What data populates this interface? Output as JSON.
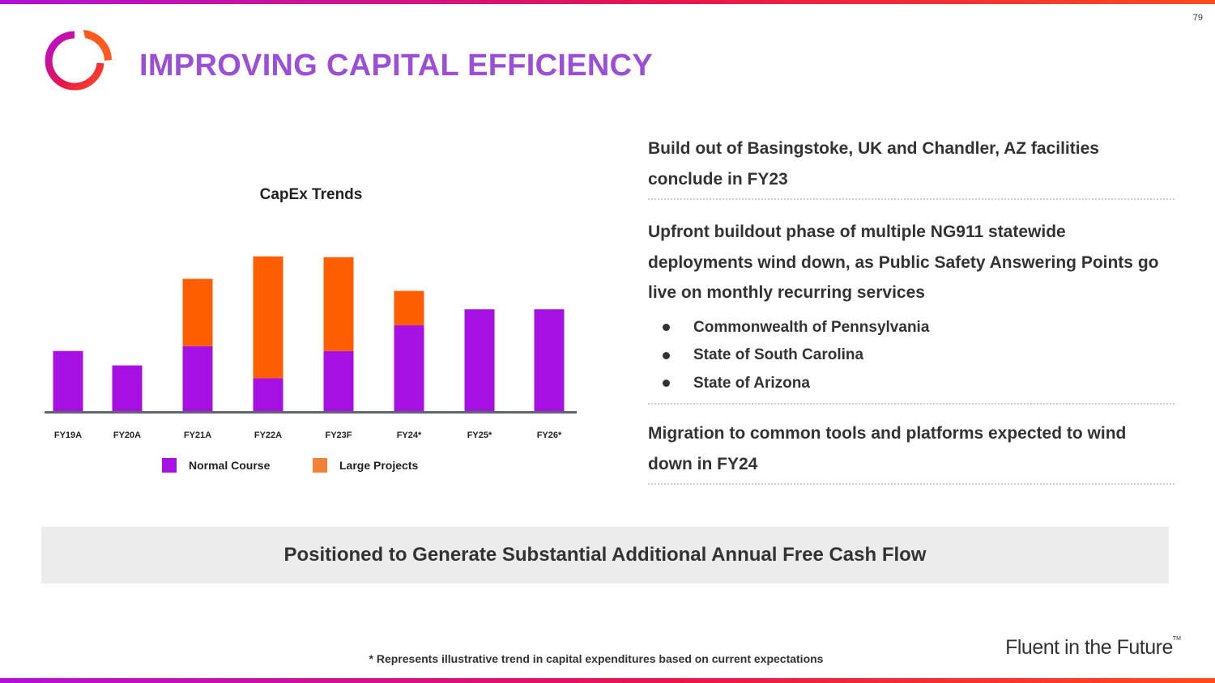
{
  "page_number": "79",
  "title": "IMPROVING CAPITAL EFFICIENCY",
  "logo_icon": "ring-logo-icon",
  "colors": {
    "title": "#9b4ed6",
    "normal_course": "#a710e3",
    "large_projects": "#ff5e00",
    "legend_large_projects": "#f28138",
    "axis": "#5e6671"
  },
  "chart_data": {
    "type": "bar",
    "stacked": true,
    "title": "CapEx Trends",
    "categories": [
      "FY19A",
      "FY20A",
      "FY21A",
      "FY22A",
      "FY23F",
      "FY24*",
      "FY25*",
      "FY26*"
    ],
    "series": [
      {
        "name": "Normal Course",
        "values": [
          75,
          57,
          81,
          41,
          75,
          107,
          127,
          127
        ]
      },
      {
        "name": "Large Projects",
        "values": [
          0,
          0,
          84,
          152,
          117,
          43,
          0,
          0
        ]
      }
    ],
    "ylim": [
      0,
      210
    ],
    "xlabel": "",
    "ylabel": "",
    "y_axis_shown": false,
    "grid": false,
    "legend_position": "bottom"
  },
  "right_panel": {
    "para1": "Build out of Basingstoke, UK and Chandler, AZ facilities conclude in FY23",
    "para2": "Upfront buildout phase of multiple NG911 statewide deployments wind down, as Public Safety Answering Points go live on monthly recurring services",
    "bullets": [
      "Commonwealth of Pennsylvania",
      "State of South Carolina",
      "State of Arizona"
    ],
    "para3": "Migration to common tools and platforms expected to wind down in FY24"
  },
  "banner": "Positioned to Generate Substantial Additional Annual Free Cash Flow",
  "footnote": "* Represents illustrative trend in capital expenditures based on current expectations",
  "tagline": "Fluent in the Future",
  "tagline_mark": "TM"
}
